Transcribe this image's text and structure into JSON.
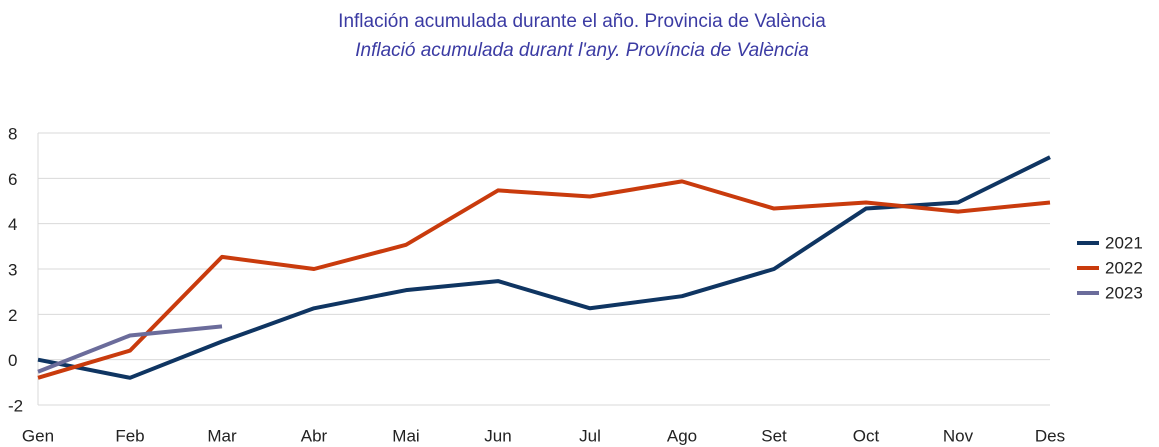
{
  "chart_data": {
    "type": "line",
    "title": "Inflación acumulada durante el año. Provincia de València",
    "subtitle": "Inflació acumulada durant l'any. Província de València",
    "categories": [
      "Gen",
      "Feb",
      "Mar",
      "Abr",
      "Mai",
      "Jun",
      "Jul",
      "Ago",
      "Set",
      "Oct",
      "Nov",
      "Des"
    ],
    "series": [
      {
        "name": "2021",
        "color": "#0f3562",
        "values": [
          0,
          -0.6,
          0.6,
          1.7,
          2.3,
          2.6,
          1.7,
          2.1,
          3.0,
          5.0,
          5.2,
          6.7
        ]
      },
      {
        "name": "2022",
        "color": "#c93b0d",
        "values": [
          -0.6,
          0.3,
          3.4,
          3.0,
          3.8,
          5.6,
          5.4,
          5.9,
          5.0,
          5.2,
          4.9,
          5.2
        ]
      },
      {
        "name": "2023",
        "color": "#6b6c9b",
        "values": [
          -0.4,
          0.8,
          1.1,
          null,
          null,
          null,
          null,
          null,
          null,
          null,
          null,
          null
        ]
      }
    ],
    "ylim": [
      -1.5,
      7.5
    ],
    "yticks": [
      {
        "value": -1.5,
        "label": "-2"
      },
      0,
      {
        "value": 1.5,
        "label": "2"
      },
      3,
      {
        "value": 4.5,
        "label": "4"
      },
      6,
      {
        "value": 7.5,
        "label": "8"
      }
    ],
    "grid": true,
    "legend": "right"
  }
}
